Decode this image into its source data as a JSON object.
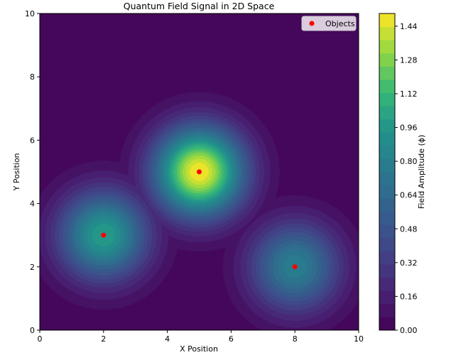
{
  "chart_data": {
    "type": "heatmap",
    "title": "Quantum Field Signal in 2D Space",
    "xlabel": "X Position",
    "ylabel": "Y Position",
    "xlim": [
      0,
      10
    ],
    "ylim": [
      0,
      10
    ],
    "x_ticks": [
      "0",
      "2",
      "4",
      "6",
      "8",
      "10"
    ],
    "y_ticks": [
      "0",
      "2",
      "4",
      "6",
      "8",
      "10"
    ],
    "grid": false,
    "colormap": "viridis",
    "field_sources": [
      {
        "x": 2,
        "y": 3,
        "amplitude": 1.0
      },
      {
        "x": 5,
        "y": 5,
        "amplitude": 1.5
      },
      {
        "x": 8,
        "y": 2,
        "amplitude": 0.8
      }
    ],
    "contour_levels": 24,
    "colorbar": {
      "label": "Field Amplitude (ϕ)",
      "range": [
        0.0,
        1.5
      ],
      "ticks": [
        "0.00",
        "0.16",
        "0.32",
        "0.48",
        "0.64",
        "0.80",
        "0.96",
        "1.12",
        "1.28",
        "1.44"
      ]
    },
    "scatter": {
      "name": "Objects",
      "color": "#ff0000",
      "points": [
        {
          "x": 2,
          "y": 3
        },
        {
          "x": 5,
          "y": 5
        },
        {
          "x": 8,
          "y": 2
        }
      ]
    },
    "legend": {
      "position": "top-right",
      "entries": [
        "Objects"
      ]
    }
  }
}
